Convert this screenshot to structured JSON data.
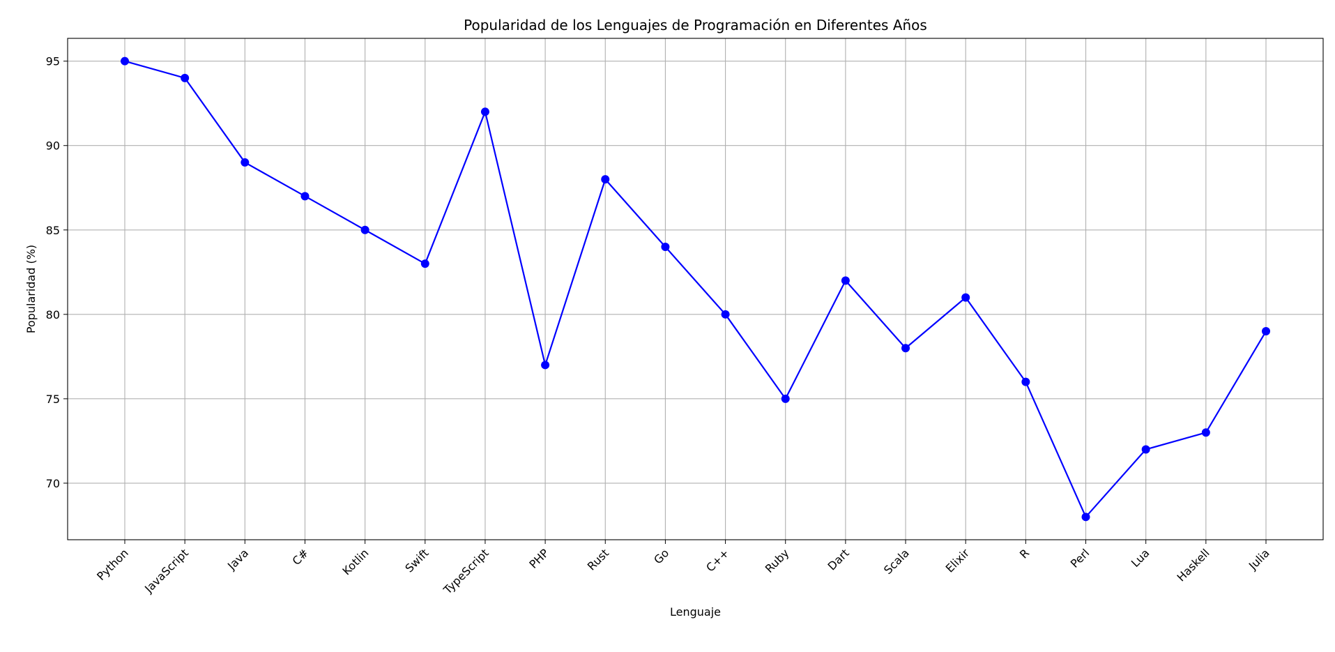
{
  "chart_data": {
    "type": "line",
    "title": "Popularidad de los Lenguajes de Programación en Diferentes Años",
    "xlabel": "Lenguaje",
    "ylabel": "Popularidad (%)",
    "categories": [
      "Python",
      "JavaScript",
      "Java",
      "C#",
      "Kotlin",
      "Swift",
      "TypeScript",
      "PHP",
      "Rust",
      "Go",
      "C++",
      "Ruby",
      "Dart",
      "Scala",
      "Elixir",
      "R",
      "Perl",
      "Lua",
      "Haskell",
      "Julia"
    ],
    "series": [
      {
        "values": [
          95,
          94,
          89,
          87,
          85,
          83,
          92,
          77,
          88,
          84,
          80,
          75,
          82,
          78,
          81,
          76,
          68,
          72,
          73,
          79
        ],
        "color": "#0000ff",
        "marker": "circle"
      }
    ],
    "yticks": [
      70,
      75,
      80,
      85,
      90,
      95
    ],
    "ylim": [
      66.65,
      96.35
    ],
    "grid": true
  }
}
